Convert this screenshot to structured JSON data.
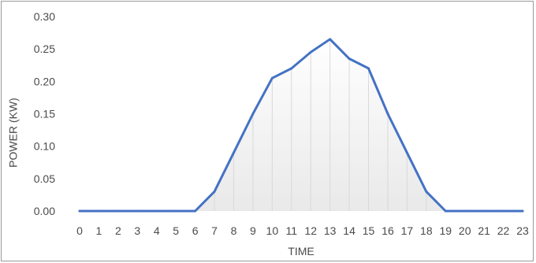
{
  "chart_data": {
    "type": "area",
    "title": "",
    "xlabel": "TIME",
    "ylabel": "POWER (KW)",
    "x": [
      0,
      1,
      2,
      3,
      4,
      5,
      6,
      7,
      8,
      9,
      10,
      11,
      12,
      13,
      14,
      15,
      16,
      17,
      18,
      19,
      20,
      21,
      22,
      23
    ],
    "categories": [
      "0",
      "1",
      "2",
      "3",
      "4",
      "5",
      "6",
      "7",
      "8",
      "9",
      "10",
      "11",
      "12",
      "13",
      "14",
      "15",
      "16",
      "17",
      "18",
      "19",
      "20",
      "21",
      "22",
      "23"
    ],
    "series": [
      {
        "values": [
          0,
          0,
          0,
          0,
          0,
          0,
          0,
          0.03,
          0.09,
          0.15,
          0.205,
          0.22,
          0.245,
          0.265,
          0.235,
          0.22,
          0.15,
          0.09,
          0.03,
          0,
          0,
          0,
          0,
          0
        ],
        "color": "#4472C4"
      }
    ],
    "ylim": [
      0,
      0.3
    ],
    "yticks": [
      "0.00",
      "0.05",
      "0.10",
      "0.15",
      "0.20",
      "0.25",
      "0.30"
    ],
    "grid": false,
    "legend": "none",
    "fill_gradient": [
      "#ffffff",
      "#e9e9e9"
    ],
    "drop_lines_color": "#d9d9d9"
  }
}
